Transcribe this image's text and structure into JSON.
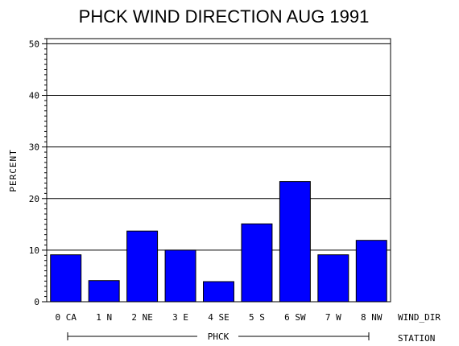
{
  "chart_data": {
    "type": "bar",
    "title": "PHCK WIND DIRECTION AUG 1991",
    "ylabel": "PERCENT",
    "xlabel": "WIND_DIR",
    "group_label": "PHCK",
    "group_axis_label": "STATION",
    "categories": [
      "0 CA",
      "1 N",
      "2 NE",
      "3 E",
      "4 SE",
      "5 S",
      "6 SW",
      "7 W",
      "8 NW"
    ],
    "values": [
      9.1,
      4.1,
      13.7,
      10.0,
      3.9,
      15.1,
      23.3,
      9.1,
      11.9
    ],
    "ylim": [
      0,
      51
    ],
    "yticks": [
      0,
      10,
      20,
      30,
      40,
      50
    ],
    "grid": true,
    "bar_color": "#0000ff"
  }
}
